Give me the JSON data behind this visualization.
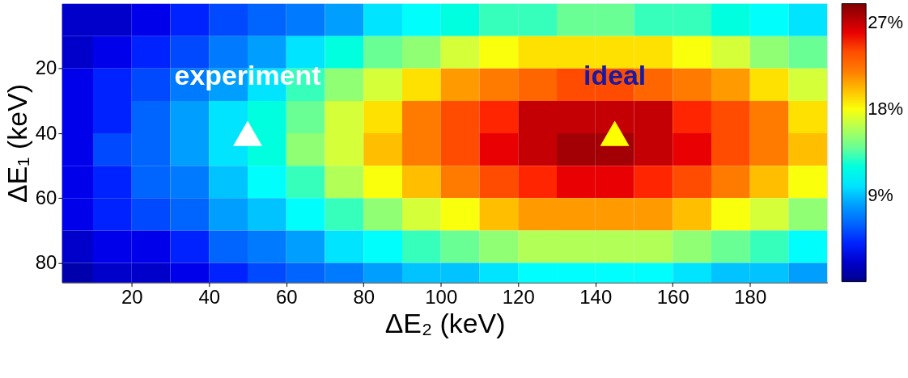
{
  "chart_data": {
    "type": "heatmap",
    "xlabel": "ΔE₂ (keV)",
    "ylabel": "ΔE₁ (keV)",
    "x": [
      5,
      15,
      25,
      35,
      45,
      55,
      65,
      75,
      85,
      95,
      105,
      115,
      125,
      135,
      145,
      155,
      165,
      175,
      185,
      195
    ],
    "y": [
      5,
      15,
      25,
      35,
      45,
      55,
      65,
      75,
      85
    ],
    "cells": [
      [
        2,
        2,
        3,
        4,
        5,
        6,
        7,
        8,
        10,
        11,
        12,
        13,
        13,
        14,
        14,
        13,
        13,
        12,
        11,
        10
      ],
      [
        2,
        3,
        4,
        5,
        7,
        8,
        10,
        12,
        14,
        15,
        17,
        18,
        19,
        19,
        19,
        19,
        18,
        17,
        15,
        14
      ],
      [
        3,
        4,
        5,
        7,
        8,
        10,
        13,
        15,
        17,
        19,
        21,
        22,
        23,
        24,
        24,
        23,
        22,
        21,
        19,
        17
      ],
      [
        3,
        4,
        6,
        8,
        10,
        12,
        14,
        17,
        19,
        22,
        24,
        25,
        27,
        27,
        27,
        27,
        25,
        24,
        22,
        19
      ],
      [
        3,
        5,
        6,
        8,
        10,
        12,
        15,
        17,
        20,
        22,
        24,
        26,
        27,
        28,
        28,
        27,
        26,
        24,
        22,
        20
      ],
      [
        3,
        4,
        6,
        7,
        9,
        11,
        13,
        16,
        18,
        20,
        22,
        24,
        25,
        26,
        26,
        25,
        24,
        22,
        20,
        18
      ],
      [
        3,
        4,
        5,
        6,
        8,
        9,
        11,
        13,
        15,
        17,
        18,
        20,
        21,
        21,
        21,
        21,
        20,
        18,
        17,
        15
      ],
      [
        2,
        3,
        3,
        4,
        6,
        7,
        8,
        10,
        11,
        13,
        14,
        15,
        16,
        16,
        16,
        16,
        15,
        14,
        13,
        11
      ],
      [
        1,
        2,
        2,
        3,
        4,
        5,
        6,
        7,
        8,
        9,
        9,
        10,
        11,
        11,
        11,
        11,
        10,
        9,
        9,
        8
      ]
    ],
    "xlim": [
      2,
      200
    ],
    "ylim": [
      86,
      0
    ],
    "xticks": [
      20,
      40,
      60,
      80,
      100,
      120,
      140,
      160,
      180
    ],
    "yticks": [
      20,
      40,
      60,
      80
    ],
    "clim": [
      0,
      29
    ],
    "cticks": [
      {
        "value": 9,
        "label": "9%"
      },
      {
        "value": 18,
        "label": "18%"
      },
      {
        "value": 27,
        "label": "27%"
      }
    ],
    "series": [
      {
        "type": "scatter",
        "x": [
          50
        ],
        "values": [
          40
        ],
        "color": "#ffffff"
      },
      {
        "type": "scatter",
        "x": [
          145
        ],
        "values": [
          40
        ],
        "color": "#ffff00"
      }
    ],
    "marker": "triangle",
    "annotations": [
      "experiment",
      "ideal"
    ]
  }
}
